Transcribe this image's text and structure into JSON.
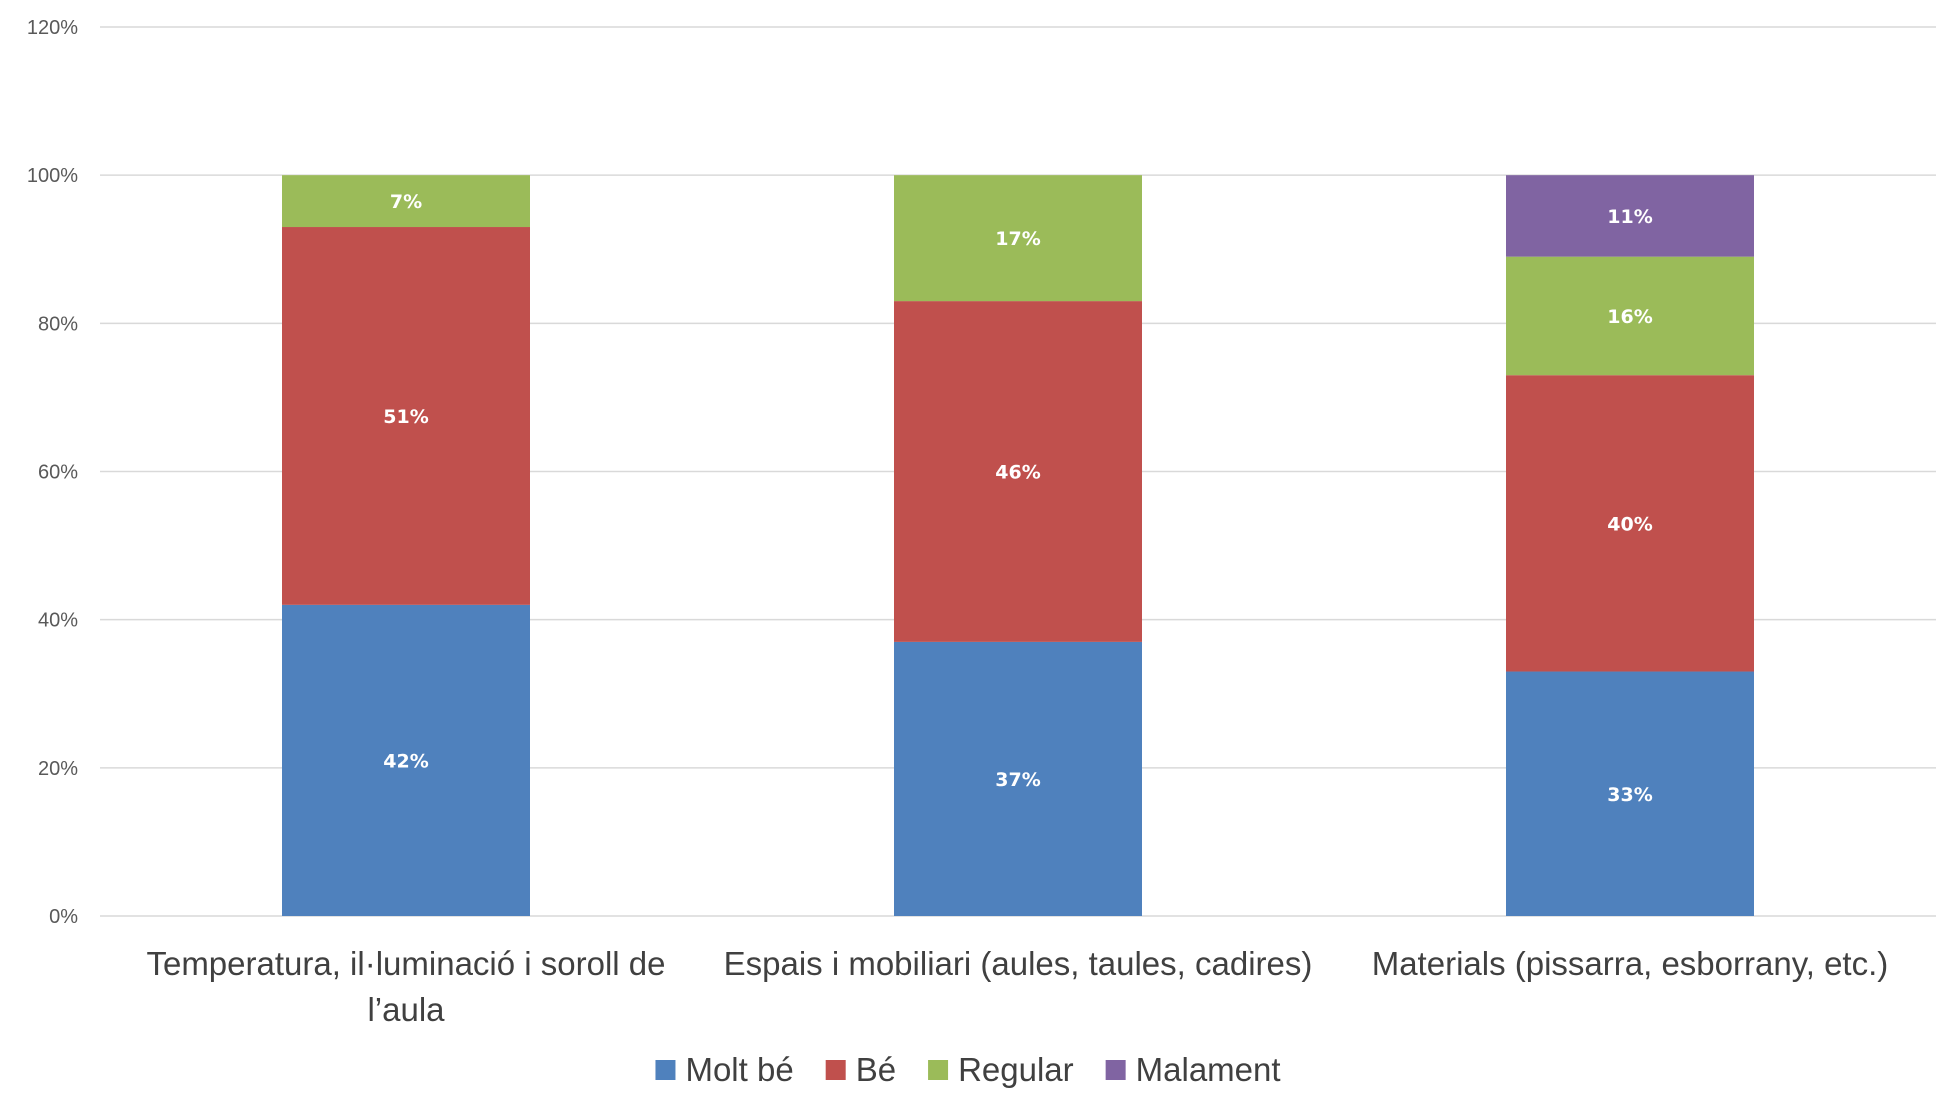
{
  "chart_data": {
    "type": "bar",
    "stacked": true,
    "title": "",
    "xlabel": "",
    "ylabel": "",
    "ylim": [
      0,
      1.2
    ],
    "yticks": [
      "0%",
      "20%",
      "40%",
      "60%",
      "80%",
      "100%",
      "120%"
    ],
    "grid": true,
    "legend_position": "bottom",
    "categories": [
      [
        "Temperatura, il·luminació i soroll de",
        "l’aula"
      ],
      [
        "Espais i mobiliari (aules, taules, cadires)"
      ],
      [
        "Materials (pissarra, esborrany, etc.)"
      ]
    ],
    "series": [
      {
        "name": "Molt bé",
        "color": "#4f81bd",
        "values": [
          0.42,
          0.37,
          0.33
        ],
        "labels": [
          "42%",
          "37%",
          "33%"
        ]
      },
      {
        "name": "Bé",
        "color": "#c0504d",
        "values": [
          0.51,
          0.46,
          0.4
        ],
        "labels": [
          "51%",
          "46%",
          "40%"
        ]
      },
      {
        "name": "Regular",
        "color": "#9bbb59",
        "values": [
          0.07,
          0.17,
          0.16
        ],
        "labels": [
          "7%",
          "17%",
          "16%"
        ]
      },
      {
        "name": "Malament",
        "color": "#8064a2",
        "values": [
          0,
          0,
          0.11
        ],
        "labels": [
          "",
          "",
          "11%"
        ]
      }
    ]
  }
}
